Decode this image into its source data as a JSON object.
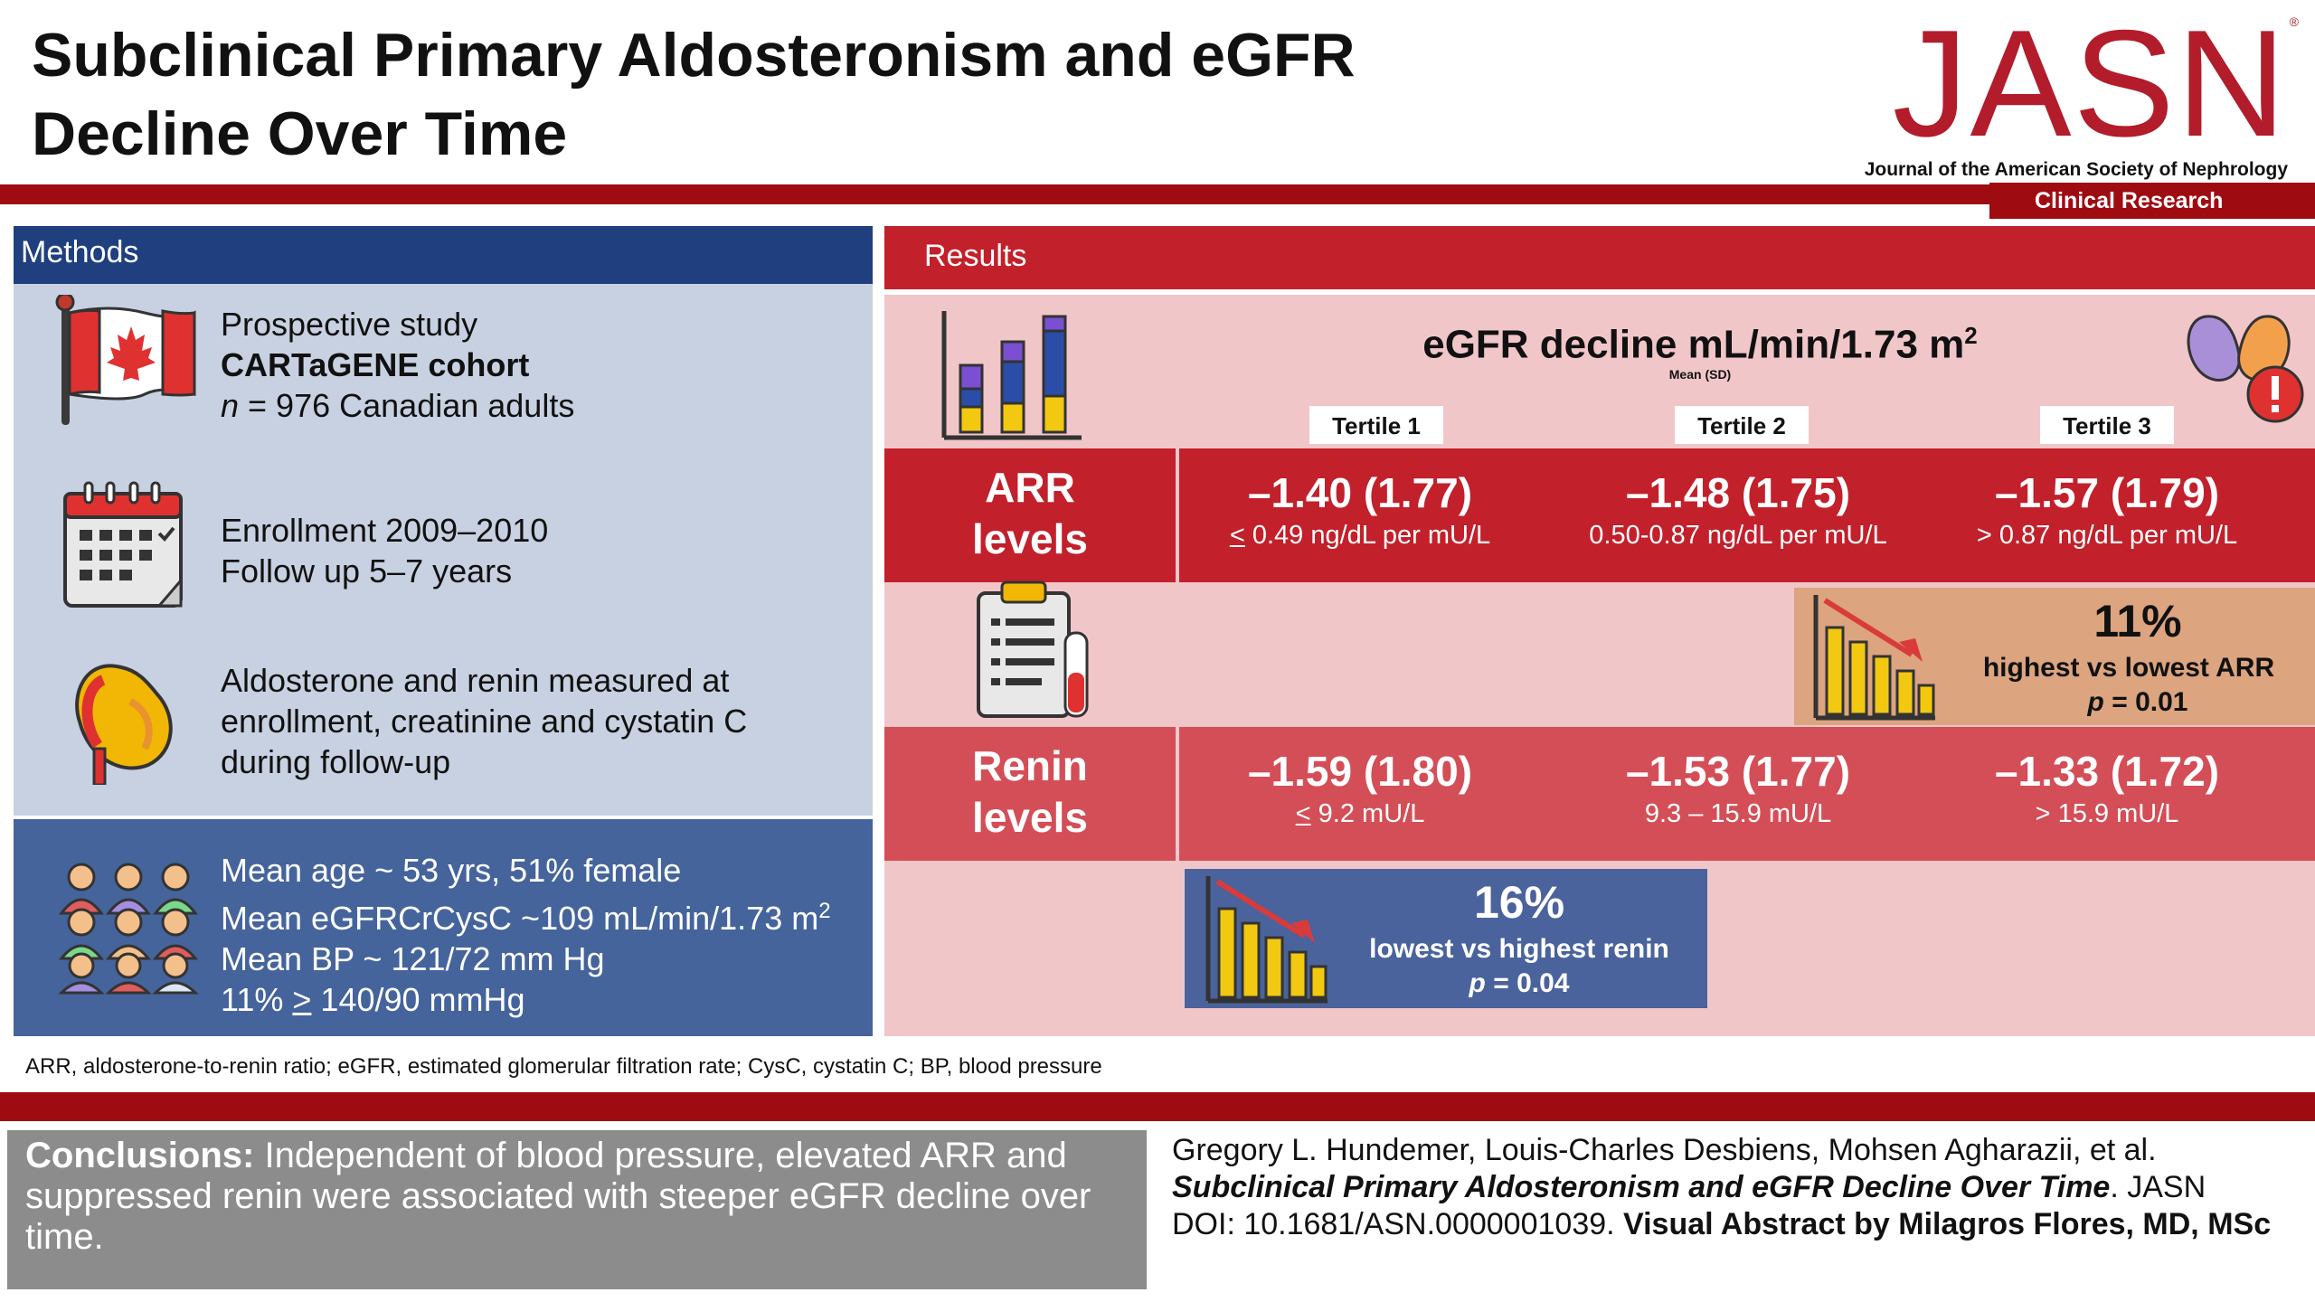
{
  "title": {
    "line1": "Subclinical Primary Aldosteronism and eGFR",
    "line2": "Decline Over Time"
  },
  "logo": {
    "name": "JASN",
    "registered": "®",
    "subtitle": "Journal of the American Society of Nephrology"
  },
  "section_label": "Clinical Research",
  "colors": {
    "brand_red": "#9e0c12",
    "methods_blue": "#1f3f7f",
    "results_red": "#c2202b",
    "results_bg": "#f1c6c9"
  },
  "methods": {
    "header": "Methods",
    "study": {
      "icon": "canada-flag-icon",
      "line1": "Prospective study",
      "line2": "CARTaGENE cohort",
      "line3_n": "n",
      "line3_rest": " = 976 Canadian adults"
    },
    "enrollment": {
      "icon": "calendar-icon",
      "line1": "Enrollment 2009–2010",
      "line2": "Follow up 5–7 years"
    },
    "measures": {
      "icon": "kidney-icon",
      "line1": "Aldosterone and renin measured at",
      "line2": "enrollment, creatinine and cystatin C",
      "line3": "during follow-up"
    },
    "demographics": {
      "icon": "people-group-icon",
      "line1": "Mean age ~  53 yrs, 51% female",
      "line2": "Mean eGFRCrCysC ~109 mL/min/1.73 m",
      "line2_sup": "2",
      "line3": "Mean BP ~ 121/72 mm Hg",
      "line4_pre": "11% ",
      "line4_u": ">",
      "line4_post": " 140/90 mmHg"
    }
  },
  "results": {
    "header": "Results",
    "egfr_title": "eGFR decline mL/min/1.73 m",
    "egfr_sup": "2",
    "egfr_sub": "Mean (SD)",
    "tertiles": [
      "Tertile 1",
      "Tertile 2",
      "Tertile 3"
    ],
    "arr": {
      "label_line1": "ARR",
      "label_line2": "levels",
      "values": [
        "–1.40 (1.77)",
        "–1.48 (1.75)",
        "–1.57 (1.79)"
      ],
      "ranges": [
        {
          "u": "<",
          "rest": " 0.49 ng/dL per mU/L"
        },
        {
          "u": "",
          "rest": "0.50-0.87 ng/dL per mU/L"
        },
        {
          "u": "",
          "rest": "> 0.87 ng/dL per mU/L"
        }
      ],
      "finding": {
        "percent": "11%",
        "text": "highest vs lowest ARR",
        "p_label": "p",
        "p_value": " = 0.01"
      }
    },
    "renin": {
      "label_line1": "Renin",
      "label_line2": "levels",
      "values": [
        "–1.59 (1.80)",
        "–1.53 (1.77)",
        "–1.33 (1.72)"
      ],
      "ranges": [
        {
          "u": "<",
          "rest": " 9.2 mU/L"
        },
        {
          "u": "",
          "rest": "9.3 – 15.9 mU/L"
        },
        {
          "u": "",
          "rest": "> 15.9 mU/L"
        }
      ],
      "finding": {
        "percent": "16%",
        "text": "lowest vs highest renin",
        "p_label": "p",
        "p_value": " = 0.04"
      }
    }
  },
  "footnote": "ARR, aldosterone-to-renin ratio; eGFR, estimated glomerular filtration rate; CysC, cystatin C; BP, blood pressure",
  "conclusions": {
    "label": "Conclusions:",
    "text": " Independent of blood pressure, elevated ARR and suppressed renin were associated with steeper eGFR decline over time."
  },
  "citation": {
    "authors": "Gregory L. Hundemer, Louis-Charles Desbiens, Mohsen Agharazii, et al.",
    "title": "Subclinical Primary Aldosteronism and eGFR Decline Over Time",
    "journal": ". JASN",
    "doi": "DOI: 10.1681/ASN.0000001039. ",
    "credit": "Visual Abstract by Milagros Flores, MD, MSc"
  }
}
